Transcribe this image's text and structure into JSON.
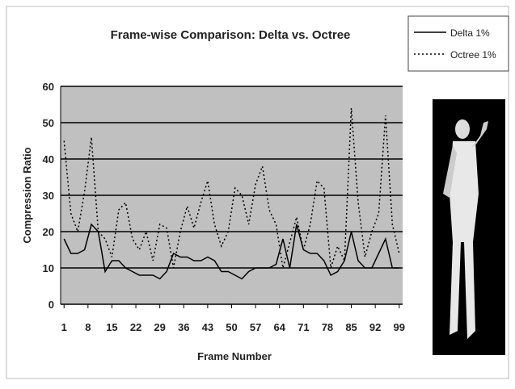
{
  "chart_data": {
    "type": "line",
    "title": "Frame-wise Comparison: Delta vs. Octree",
    "x_label": "Frame Number",
    "y_label": "Compression Ratio",
    "x": [
      1,
      3,
      5,
      7,
      9,
      11,
      13,
      15,
      17,
      19,
      21,
      23,
      25,
      27,
      29,
      31,
      33,
      35,
      37,
      39,
      41,
      43,
      45,
      47,
      49,
      51,
      53,
      55,
      57,
      59,
      61,
      63,
      65,
      67,
      69,
      71,
      73,
      75,
      77,
      79,
      81,
      83,
      85,
      87,
      89,
      91,
      93,
      95,
      97,
      99
    ],
    "series": [
      {
        "name": "Delta 1%",
        "color": "#000000",
        "dash": "solid",
        "values": [
          18,
          14,
          14,
          15,
          22,
          20,
          9,
          12,
          12,
          10,
          9,
          8,
          8,
          8,
          7,
          9,
          14,
          13,
          13,
          12,
          12,
          13,
          12,
          9,
          9,
          8,
          7,
          9,
          10,
          10,
          10,
          11,
          18,
          10,
          22,
          15,
          14,
          14,
          12,
          8,
          9,
          12,
          20,
          12,
          10,
          10,
          14,
          18,
          10,
          10
        ]
      },
      {
        "name": "Octree 1%",
        "color": "#000000",
        "dash": "dotted",
        "values": [
          45,
          25,
          20,
          31,
          46,
          20,
          18,
          13,
          26,
          28,
          18,
          15,
          20,
          12,
          22,
          21,
          10,
          20,
          27,
          21,
          28,
          34,
          22,
          16,
          20,
          32,
          30,
          22,
          33,
          38,
          26,
          22,
          10,
          17,
          24,
          15,
          22,
          34,
          32,
          10,
          16,
          12,
          54,
          28,
          13,
          20,
          25,
          52,
          22,
          14
        ]
      }
    ],
    "xlim": [
      0,
      100
    ],
    "xticks": [
      1,
      8,
      15,
      22,
      29,
      36,
      43,
      50,
      57,
      64,
      71,
      78,
      85,
      92,
      99
    ],
    "ylim": [
      0,
      60
    ],
    "yticks": [
      0,
      10,
      20,
      30,
      40,
      50,
      60
    ],
    "grid": true,
    "legend": "top-right"
  }
}
